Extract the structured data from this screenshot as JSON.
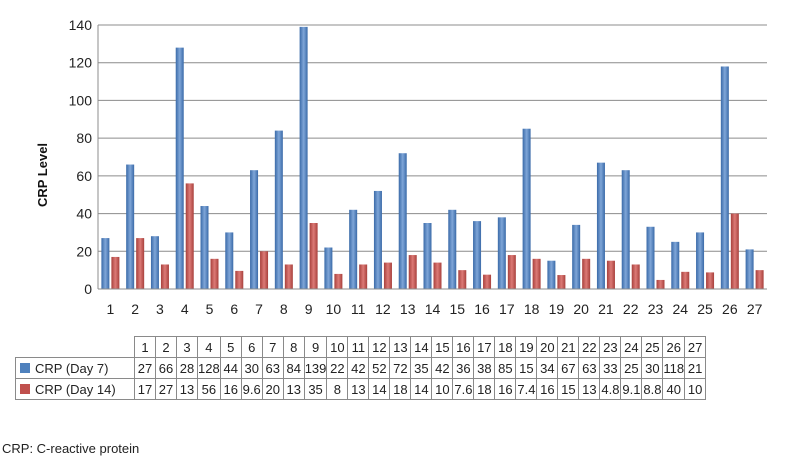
{
  "chart_data": {
    "type": "bar",
    "ylabel": "CRP Level",
    "xlabel": "",
    "ylim": [
      0,
      140
    ],
    "yticks": [
      0,
      20,
      40,
      60,
      80,
      100,
      120,
      140
    ],
    "grid": true,
    "categories": [
      "1",
      "2",
      "3",
      "4",
      "5",
      "6",
      "7",
      "8",
      "9",
      "10",
      "11",
      "12",
      "13",
      "14",
      "15",
      "16",
      "17",
      "18",
      "19",
      "20",
      "21",
      "22",
      "23",
      "24",
      "25",
      "26",
      "27"
    ],
    "series": [
      {
        "name": "CRP (Day 7)",
        "color": "#4f81bd",
        "values": [
          27,
          66,
          28,
          128,
          44,
          30,
          63,
          84,
          139,
          22,
          42,
          52,
          72,
          35,
          42,
          36,
          38,
          85,
          15,
          34,
          67,
          63,
          33,
          25,
          30,
          118,
          21
        ],
        "labels": [
          "27",
          "66",
          "28",
          "128",
          "44",
          "30",
          "63",
          "84",
          "139",
          "22",
          "42",
          "52",
          "72",
          "35",
          "42",
          "36",
          "38",
          "85",
          "15",
          "34",
          "67",
          "63",
          "33",
          "25",
          "30",
          "118",
          "21"
        ]
      },
      {
        "name": "CRP (Day 14)",
        "color": "#c0504d",
        "values": [
          17,
          27,
          13,
          56,
          16,
          9.6,
          20,
          13,
          35,
          8,
          13,
          14,
          18,
          14,
          10,
          7.6,
          18,
          16,
          7.4,
          16,
          15,
          13,
          4.8,
          9.1,
          8.8,
          40,
          10
        ],
        "labels": [
          "17",
          "27",
          "13",
          "56",
          "16",
          "9.6",
          "20",
          "13",
          "35",
          "8",
          "13",
          "14",
          "18",
          "14",
          "10",
          "7.6",
          "18",
          "16",
          "7.4",
          "16",
          "15",
          "13",
          "4.8",
          "9.1",
          "8.8",
          "40",
          "10"
        ]
      }
    ]
  },
  "footnote": "CRP: C-reactive protein"
}
